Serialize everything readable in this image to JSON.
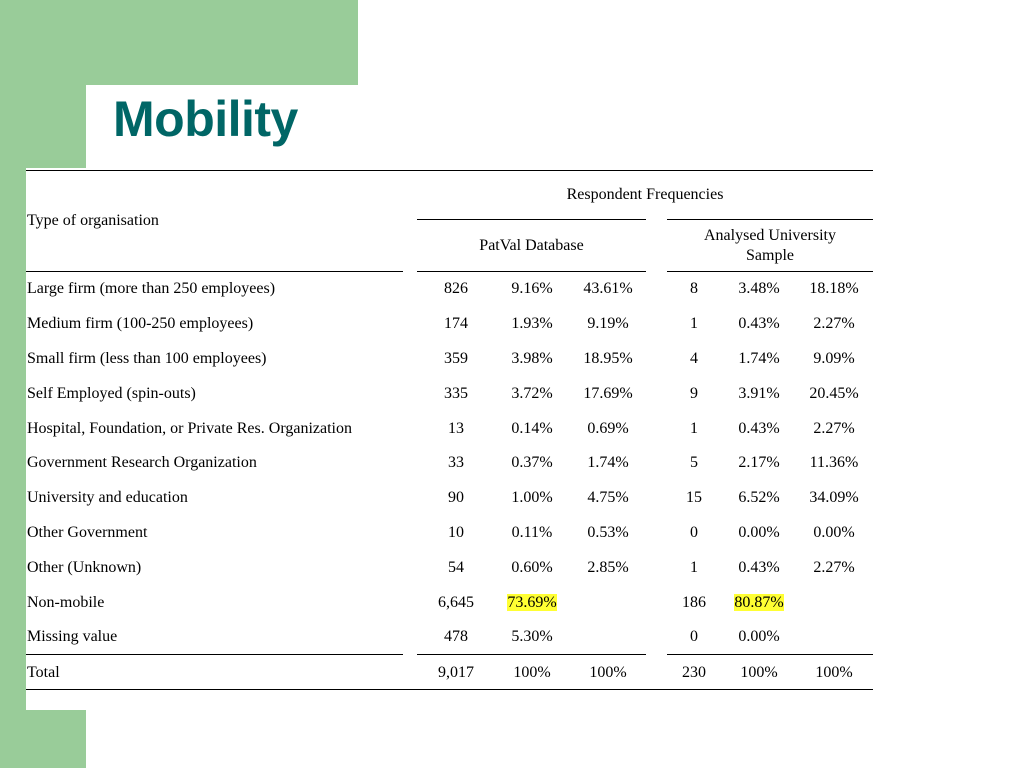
{
  "title": "Mobility",
  "header": {
    "type_label": "Type of organisation",
    "group_label": "Respondent Frequencies",
    "patval_label": "PatVal Database",
    "university_label_line1": "Analysed University",
    "university_label_line2": "Sample"
  },
  "colors": {
    "accent_green": "#99cc99",
    "title_teal": "#006666",
    "highlight": "#ffff33"
  },
  "rows": [
    {
      "label": "Large firm (more than 250 employees)",
      "p_n": "826",
      "p_pct": "9.16%",
      "p_pct2": "43.61%",
      "u_n": "8",
      "u_pct": "3.48%",
      "u_pct2": "18.18%"
    },
    {
      "label": "Medium firm (100-250 employees)",
      "p_n": "174",
      "p_pct": "1.93%",
      "p_pct2": "9.19%",
      "u_n": "1",
      "u_pct": "0.43%",
      "u_pct2": "2.27%"
    },
    {
      "label": "Small firm (less than 100 employees)",
      "p_n": "359",
      "p_pct": "3.98%",
      "p_pct2": "18.95%",
      "u_n": "4",
      "u_pct": "1.74%",
      "u_pct2": "9.09%"
    },
    {
      "label": "Self Employed (spin-outs)",
      "p_n": "335",
      "p_pct": "3.72%",
      "p_pct2": "17.69%",
      "u_n": "9",
      "u_pct": "3.91%",
      "u_pct2": "20.45%"
    },
    {
      "label": "Hospital, Foundation, or Private Res. Organization",
      "p_n": "13",
      "p_pct": "0.14%",
      "p_pct2": "0.69%",
      "u_n": "1",
      "u_pct": "0.43%",
      "u_pct2": "2.27%"
    },
    {
      "label": "Government Research Organization",
      "p_n": "33",
      "p_pct": "0.37%",
      "p_pct2": "1.74%",
      "u_n": "5",
      "u_pct": "2.17%",
      "u_pct2": "11.36%"
    },
    {
      "label": "University and education",
      "p_n": "90",
      "p_pct": "1.00%",
      "p_pct2": "4.75%",
      "u_n": "15",
      "u_pct": "6.52%",
      "u_pct2": "34.09%"
    },
    {
      "label": "Other Government",
      "p_n": "10",
      "p_pct": "0.11%",
      "p_pct2": "0.53%",
      "u_n": "0",
      "u_pct": "0.00%",
      "u_pct2": "0.00%"
    },
    {
      "label": "Other (Unknown)",
      "p_n": "54",
      "p_pct": "0.60%",
      "p_pct2": "2.85%",
      "u_n": "1",
      "u_pct": "0.43%",
      "u_pct2": "2.27%"
    },
    {
      "label": "Non-mobile",
      "p_n": "6,645",
      "p_pct": "73.69%",
      "p_pct2": "",
      "u_n": "186",
      "u_pct": "80.87%",
      "u_pct2": "",
      "highlight": true
    },
    {
      "label": "Missing value",
      "p_n": "478",
      "p_pct": "5.30%",
      "p_pct2": "",
      "u_n": "0",
      "u_pct": "0.00%",
      "u_pct2": ""
    },
    {
      "label": "Total",
      "p_n": "9,017",
      "p_pct": "100%",
      "p_pct2": "100%",
      "u_n": "230",
      "u_pct": "100%",
      "u_pct2": "100%"
    }
  ]
}
